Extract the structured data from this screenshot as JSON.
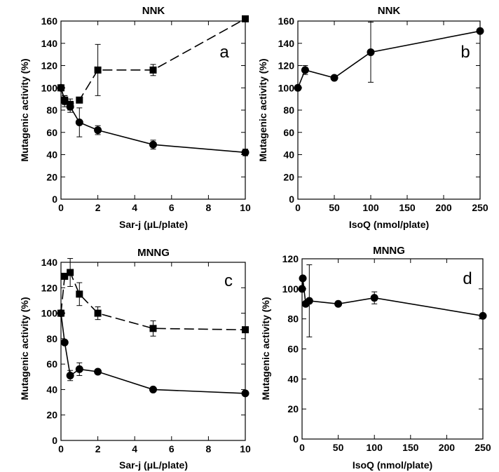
{
  "chart_data": [
    {
      "id": "a",
      "type": "line",
      "title": "NNK",
      "panel_letter": "a",
      "xlabel": "Sar-j (μL/plate)",
      "ylabel": "Mutagenic activity (%)",
      "xlim": [
        0,
        10
      ],
      "ylim": [
        0,
        160
      ],
      "xticks": [
        0,
        2,
        4,
        6,
        8,
        10
      ],
      "yticks": [
        0,
        20,
        40,
        60,
        80,
        100,
        120,
        140,
        160
      ],
      "grid": false,
      "series": [
        {
          "marker": "square",
          "line_style": "dashed",
          "x": [
            0,
            0.2,
            0.5,
            1,
            2,
            5,
            10
          ],
          "y": [
            100,
            89,
            85,
            89,
            116,
            116,
            162
          ],
          "error": [
            0,
            4,
            5,
            0,
            23,
            5,
            0
          ]
        },
        {
          "marker": "circle",
          "line_style": "solid",
          "x": [
            0,
            0.2,
            0.5,
            1,
            2,
            5,
            10
          ],
          "y": [
            100,
            88,
            83,
            69,
            62,
            49,
            42
          ],
          "error": [
            0,
            5,
            5,
            13,
            4,
            4,
            3
          ]
        }
      ]
    },
    {
      "id": "b",
      "type": "line",
      "title": "NNK",
      "panel_letter": "b",
      "xlabel": "IsoQ (nmol/plate)",
      "ylabel": "Mutagenic activity (%)",
      "xlim": [
        0,
        250
      ],
      "ylim": [
        0,
        160
      ],
      "xticks": [
        0,
        50,
        100,
        150,
        200,
        250
      ],
      "yticks": [
        0,
        20,
        40,
        60,
        80,
        100,
        120,
        140,
        160
      ],
      "grid": false,
      "series": [
        {
          "marker": "circle",
          "line_style": "solid",
          "x": [
            0,
            10,
            50,
            100,
            250
          ],
          "y": [
            100,
            116,
            109,
            132,
            151
          ],
          "error": [
            0,
            4,
            0,
            27,
            0
          ]
        }
      ]
    },
    {
      "id": "c",
      "type": "line",
      "title": "MNNG",
      "panel_letter": "c",
      "xlabel": "Sar-j  (μL/plate)",
      "ylabel": "Mutagenic activity  (%)",
      "xlim": [
        0,
        10
      ],
      "ylim": [
        0,
        140
      ],
      "xticks": [
        0,
        2,
        4,
        6,
        8,
        10
      ],
      "yticks": [
        0,
        20,
        40,
        60,
        80,
        100,
        120,
        140
      ],
      "grid": false,
      "series": [
        {
          "marker": "square",
          "line_style": "dashed",
          "x": [
            0,
            0.2,
            0.5,
            1,
            2,
            5,
            10
          ],
          "y": [
            100,
            129,
            132,
            115,
            100,
            88,
            87
          ],
          "error": [
            0,
            0,
            11,
            9,
            5,
            6,
            0
          ]
        },
        {
          "marker": "circle",
          "line_style": "solid",
          "x": [
            0,
            0.2,
            0.5,
            1,
            2,
            5,
            10
          ],
          "y": [
            100,
            77,
            51,
            56,
            54,
            40,
            37
          ],
          "error": [
            0,
            0,
            4,
            5,
            0,
            0,
            0
          ]
        }
      ]
    },
    {
      "id": "d",
      "type": "line",
      "title": "MNNG",
      "panel_letter": "d",
      "xlabel": "IsoQ (nmol/plate)",
      "ylabel": "Mutagenic activity (%)",
      "xlim": [
        0,
        250
      ],
      "ylim": [
        0,
        120
      ],
      "xticks": [
        0,
        50,
        100,
        150,
        200,
        250
      ],
      "yticks": [
        0,
        20,
        40,
        60,
        80,
        100,
        120
      ],
      "grid": false,
      "series": [
        {
          "marker": "circle",
          "line_style": "solid",
          "x": [
            0,
            1,
            5,
            10,
            50,
            100,
            250
          ],
          "y": [
            100,
            107,
            90,
            92,
            90,
            94,
            82
          ],
          "error": [
            0,
            0,
            0,
            24,
            0,
            4,
            0
          ]
        }
      ]
    }
  ]
}
